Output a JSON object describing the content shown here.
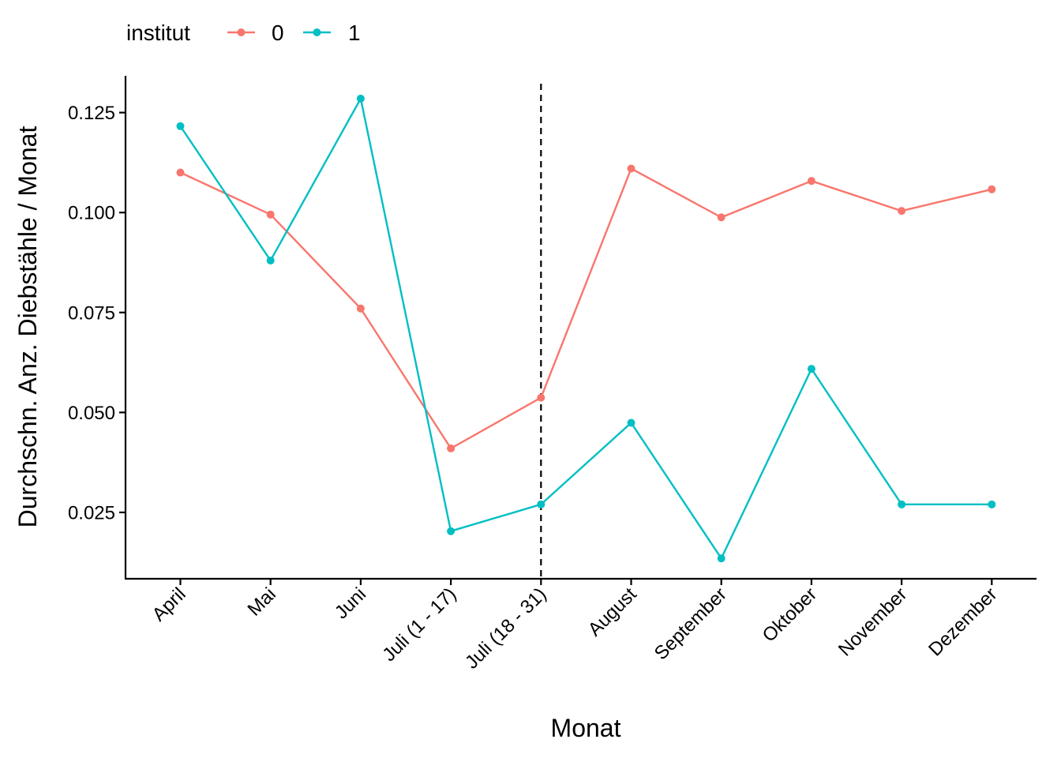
{
  "chart_data": {
    "type": "line",
    "xlabel": "Monat",
    "ylabel": "Durchschn. Anz. Diebstähle / Monat",
    "categories": [
      "April",
      "Mai",
      "Juni",
      "Juli (1 - 17)",
      "Juli (18 - 31)",
      "August",
      "September",
      "Oktober",
      "November",
      "Dezember"
    ],
    "series": [
      {
        "name": "0",
        "color": "#F8766D",
        "values": [
          0.11,
          0.0995,
          0.076,
          0.041,
          0.0537,
          0.111,
          0.0988,
          0.1079,
          0.1004,
          0.1058
        ]
      },
      {
        "name": "1",
        "color": "#00BFC4",
        "values": [
          0.1216,
          0.088,
          0.1285,
          0.0203,
          0.027,
          0.0474,
          0.0135,
          0.0609,
          0.027,
          0.027
        ]
      }
    ],
    "ylim": [
      0.0084,
      0.1342
    ],
    "yticks": [
      0.025,
      0.05,
      0.075,
      0.1,
      0.125
    ],
    "ytick_labels": [
      "0.025",
      "0.050",
      "0.075",
      "0.100",
      "0.125"
    ],
    "vline_category": "Juli (18 - 31)",
    "vline_style": "dashed",
    "legend": {
      "title": "institut",
      "position": "top-left"
    },
    "grid": false
  }
}
